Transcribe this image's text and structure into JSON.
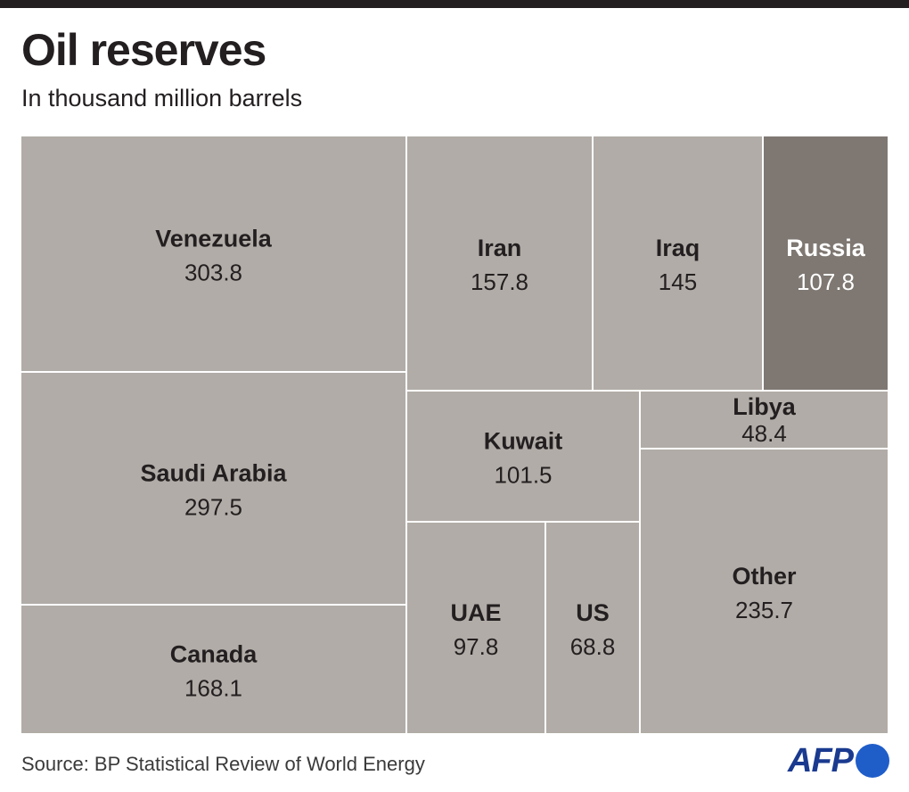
{
  "title": "Oil reserves",
  "subtitle": "In thousand million barrels",
  "source": "Source: BP Statistical Review of World Energy",
  "logo": {
    "text": "AFP",
    "icon": "afp-logo"
  },
  "colors": {
    "tile": "#b1aca7",
    "highlight": "#7f7872",
    "text": "#231f20",
    "highlight_text": "#ffffff",
    "border": "#ffffff"
  },
  "chart_data": {
    "type": "treemap",
    "title": "Oil reserves",
    "subtitle": "In thousand million barrels",
    "unit": "thousand million barrels",
    "highlighted": "Russia",
    "items": [
      {
        "name": "Venezuela",
        "value": 303.8,
        "label": "303.8"
      },
      {
        "name": "Saudi Arabia",
        "value": 297.5,
        "label": "297.5"
      },
      {
        "name": "Canada",
        "value": 168.1,
        "label": "168.1"
      },
      {
        "name": "Iran",
        "value": 157.8,
        "label": "157.8"
      },
      {
        "name": "Iraq",
        "value": 145,
        "label": "145"
      },
      {
        "name": "Russia",
        "value": 107.8,
        "label": "107.8"
      },
      {
        "name": "Kuwait",
        "value": 101.5,
        "label": "101.5"
      },
      {
        "name": "Libya",
        "value": 48.4,
        "label": "48.4"
      },
      {
        "name": "UAE",
        "value": 97.8,
        "label": "97.8"
      },
      {
        "name": "US",
        "value": 68.8,
        "label": "68.8"
      },
      {
        "name": "Other",
        "value": 235.7,
        "label": "235.7"
      }
    ]
  }
}
